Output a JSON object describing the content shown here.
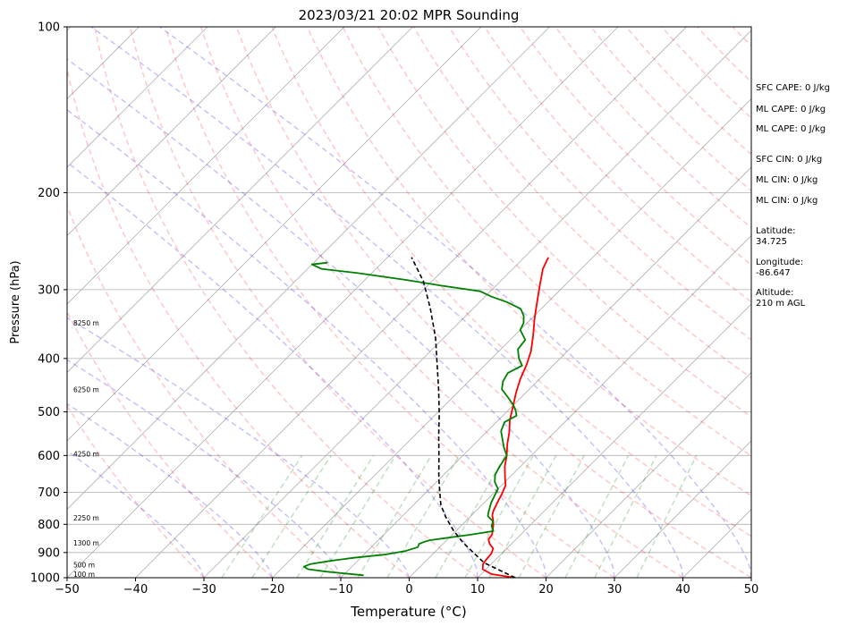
{
  "chart_data": {
    "type": "skew-t",
    "title": "2023/03/21 20:02 MPR Sounding",
    "xlabel": "Temperature (°C)",
    "ylabel": "Pressure (hPa)",
    "xlim": [
      -50,
      50
    ],
    "ylim": [
      1000,
      100
    ],
    "y_scale": "log",
    "x_ticks": [
      -50,
      -40,
      -30,
      -20,
      -10,
      0,
      10,
      20,
      30,
      40,
      50
    ],
    "x_tick_labels": [
      "−50",
      "−40",
      "−30",
      "−20",
      "−10",
      "0",
      "10",
      "20",
      "30",
      "40",
      "50"
    ],
    "y_ticks": [
      100,
      200,
      300,
      400,
      500,
      600,
      700,
      800,
      900,
      1000
    ],
    "y_tick_labels": [
      "100",
      "200",
      "300",
      "400",
      "500",
      "600",
      "700",
      "800",
      "900",
      "1000"
    ],
    "grid": true,
    "height_labels": [
      {
        "text": "100 m",
        "p": 988
      },
      {
        "text": "500 m",
        "p": 950
      },
      {
        "text": "1300 m",
        "p": 868
      },
      {
        "text": "2250 m",
        "p": 781
      },
      {
        "text": "4250 m",
        "p": 598
      },
      {
        "text": "6250 m",
        "p": 457
      },
      {
        "text": "8250 m",
        "p": 346
      }
    ],
    "series": [
      {
        "color": "#ff0000",
        "style": "solid",
        "points": [
          [
            15.5,
            1000
          ],
          [
            11.5,
            985
          ],
          [
            9.5,
            965
          ],
          [
            8.8,
            945
          ],
          [
            8.6,
            925
          ],
          [
            8.5,
            905
          ],
          [
            8.0,
            885
          ],
          [
            6.8,
            868
          ],
          [
            6.0,
            852
          ],
          [
            5.8,
            835
          ],
          [
            5.2,
            818
          ],
          [
            4.5,
            800
          ],
          [
            3.8,
            785
          ],
          [
            3.0,
            770
          ],
          [
            2.5,
            755
          ],
          [
            1.9,
            730
          ],
          [
            1.3,
            705
          ],
          [
            0.6,
            680
          ],
          [
            -0.8,
            655
          ],
          [
            -2.3,
            628
          ],
          [
            -3.6,
            600
          ],
          [
            -5.2,
            572
          ],
          [
            -6.6,
            545
          ],
          [
            -8.3,
            518
          ],
          [
            -9.8,
            490
          ],
          [
            -11.4,
            462
          ],
          [
            -12.8,
            436
          ],
          [
            -14.0,
            410
          ],
          [
            -15.3,
            388
          ],
          [
            -17.4,
            362
          ],
          [
            -19.6,
            338
          ],
          [
            -21.6,
            316
          ],
          [
            -23.6,
            295
          ],
          [
            -25.6,
            275
          ],
          [
            -26.5,
            262
          ]
        ]
      },
      {
        "color": "#008000",
        "style": "solid",
        "points": [
          [
            -7.0,
            990
          ],
          [
            -13.0,
            975
          ],
          [
            -16.0,
            965
          ],
          [
            -17.0,
            955
          ],
          [
            -16.5,
            945
          ],
          [
            -14.0,
            932
          ],
          [
            -11.0,
            920
          ],
          [
            -7.0,
            908
          ],
          [
            -4.5,
            895
          ],
          [
            -3.2,
            880
          ],
          [
            -3.5,
            868
          ],
          [
            -3.0,
            860
          ],
          [
            -2.5,
            855
          ],
          [
            2.5,
            836
          ],
          [
            5.5,
            823
          ],
          [
            4.5,
            806
          ],
          [
            4.0,
            790
          ],
          [
            2.5,
            773
          ],
          [
            2.0,
            760
          ],
          [
            1.5,
            745
          ],
          [
            1.0,
            730
          ],
          [
            0.5,
            710
          ],
          [
            0.0,
            690
          ],
          [
            -1.5,
            670
          ],
          [
            -2.5,
            650
          ],
          [
            -3.0,
            630
          ],
          [
            -3.6,
            600
          ],
          [
            -5.2,
            580
          ],
          [
            -6.5,
            562
          ],
          [
            -8.0,
            542
          ],
          [
            -8.8,
            522
          ],
          [
            -8.0,
            508
          ],
          [
            -8.8,
            498
          ],
          [
            -10.0,
            486
          ],
          [
            -12.0,
            470
          ],
          [
            -14.0,
            455
          ],
          [
            -15.0,
            440
          ],
          [
            -15.5,
            425
          ],
          [
            -14.5,
            412
          ],
          [
            -16.0,
            400
          ],
          [
            -17.5,
            385
          ],
          [
            -17.8,
            370
          ],
          [
            -20.0,
            355
          ],
          [
            -20.5,
            345
          ],
          [
            -21.5,
            335
          ],
          [
            -23.0,
            325
          ],
          [
            -26.0,
            316
          ],
          [
            -29.0,
            309
          ],
          [
            -31.5,
            302
          ],
          [
            -38.0,
            295
          ],
          [
            -44.0,
            288
          ],
          [
            -52.0,
            280
          ],
          [
            -58.0,
            275
          ],
          [
            -60.0,
            270
          ],
          [
            -58.0,
            268
          ]
        ]
      },
      {
        "color": "#000000",
        "style": "dashed",
        "points": [
          [
            15.5,
            1000
          ],
          [
            8.8,
            940
          ],
          [
            6.0,
            904
          ],
          [
            2.7,
            863
          ],
          [
            -0.5,
            820
          ],
          [
            -3.6,
            775
          ],
          [
            -6.0,
            738
          ],
          [
            -7.2,
            715
          ],
          [
            -10.2,
            660
          ],
          [
            -13.4,
            602
          ],
          [
            -16.4,
            553
          ],
          [
            -19.5,
            505
          ],
          [
            -23.0,
            458
          ],
          [
            -27.0,
            411
          ],
          [
            -31.2,
            367
          ],
          [
            -36.2,
            325
          ],
          [
            -41.2,
            290
          ],
          [
            -46.5,
            262
          ]
        ]
      }
    ],
    "annotations": [
      "SFC CAPE: 0 J/kg",
      "ML CAPE: 0 J/kg",
      "ML CAPE: 0 J/kg",
      "SFC CIN: 0 J/kg",
      "ML CIN: 0 J/kg",
      "ML CIN: 0 J/kg",
      "Latitude:",
      "34.725",
      "Longitude:",
      "-86.647",
      "Altitude:",
      "210 m AGL"
    ]
  }
}
